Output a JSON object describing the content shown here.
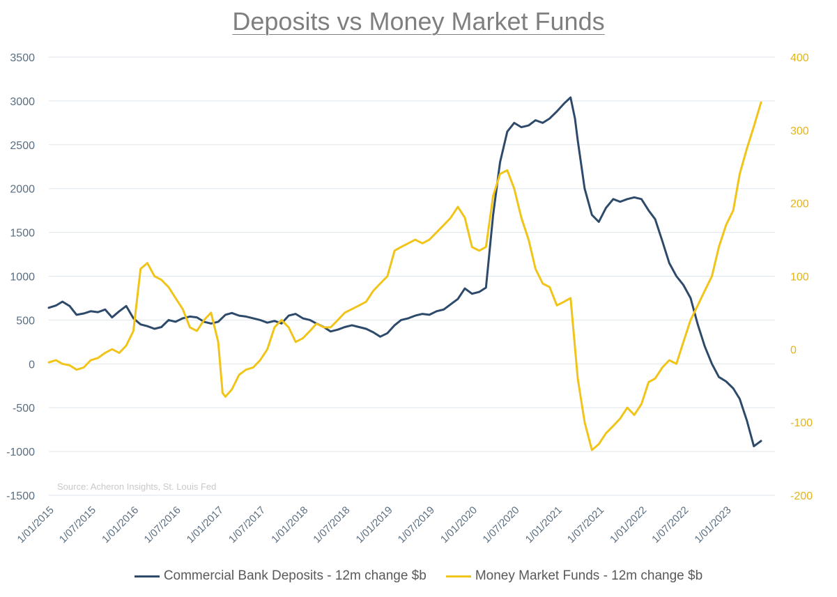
{
  "chart_data": {
    "type": "line",
    "title": "Deposits vs Money Market Funds",
    "source_note": "Source: Acheron Insights, St. Louis Fed",
    "colors": {
      "deposits": "#2e4a6b",
      "mmf": "#f0c419",
      "grid": "#dde6ec",
      "left_axis_text": "#5a6e80",
      "right_axis_text": "#e3b419"
    },
    "y_left": {
      "range": [
        -1500,
        3500
      ],
      "ticks": [
        "3500",
        "3000",
        "2500",
        "2000",
        "1500",
        "1000",
        "500",
        "0",
        "-500",
        "-1000",
        "-1500"
      ]
    },
    "y_right": {
      "range": [
        -200,
        400
      ],
      "ticks": [
        "400",
        "300",
        "200",
        "100",
        "0",
        "-100",
        "-200"
      ]
    },
    "x_range": [
      "2015-01-01",
      "2023-07-31"
    ],
    "x_ticks": [
      {
        "label": "1/01/2015",
        "date": "2015-01-01"
      },
      {
        "label": "1/07/2015",
        "date": "2015-07-01"
      },
      {
        "label": "1/01/2016",
        "date": "2016-01-01"
      },
      {
        "label": "1/07/2016",
        "date": "2016-07-01"
      },
      {
        "label": "1/01/2017",
        "date": "2017-01-01"
      },
      {
        "label": "1/07/2017",
        "date": "2017-07-01"
      },
      {
        "label": "1/01/2018",
        "date": "2018-01-01"
      },
      {
        "label": "1/07/2018",
        "date": "2018-07-01"
      },
      {
        "label": "1/01/2019",
        "date": "2019-01-01"
      },
      {
        "label": "1/07/2019",
        "date": "2019-07-01"
      },
      {
        "label": "1/01/2020",
        "date": "2020-01-01"
      },
      {
        "label": "1/07/2020",
        "date": "2020-07-01"
      },
      {
        "label": "1/01/2021",
        "date": "2021-01-01"
      },
      {
        "label": "1/07/2021",
        "date": "2021-07-01"
      },
      {
        "label": "1/01/2022",
        "date": "2022-01-01"
      },
      {
        "label": "1/07/2022",
        "date": "2022-07-01"
      },
      {
        "label": "1/01/2023",
        "date": "2023-01-01"
      }
    ],
    "series": [
      {
        "name": "Commercial Bank Deposits - 12m change $b",
        "axis": "left",
        "color": "#2e4a6b",
        "points": [
          [
            "2015-01-01",
            640
          ],
          [
            "2015-02-01",
            665
          ],
          [
            "2015-03-01",
            710
          ],
          [
            "2015-04-01",
            660
          ],
          [
            "2015-05-01",
            560
          ],
          [
            "2015-06-01",
            575
          ],
          [
            "2015-07-01",
            600
          ],
          [
            "2015-08-01",
            590
          ],
          [
            "2015-09-01",
            620
          ],
          [
            "2015-10-01",
            530
          ],
          [
            "2015-11-01",
            600
          ],
          [
            "2015-12-01",
            660
          ],
          [
            "2016-01-01",
            520
          ],
          [
            "2016-02-01",
            450
          ],
          [
            "2016-03-01",
            430
          ],
          [
            "2016-04-01",
            400
          ],
          [
            "2016-05-01",
            420
          ],
          [
            "2016-06-01",
            500
          ],
          [
            "2016-07-01",
            480
          ],
          [
            "2016-08-01",
            520
          ],
          [
            "2016-09-01",
            540
          ],
          [
            "2016-10-01",
            530
          ],
          [
            "2016-11-01",
            480
          ],
          [
            "2016-12-01",
            460
          ],
          [
            "2017-01-01",
            480
          ],
          [
            "2017-02-01",
            560
          ],
          [
            "2017-03-01",
            580
          ],
          [
            "2017-04-01",
            550
          ],
          [
            "2017-05-01",
            540
          ],
          [
            "2017-06-01",
            520
          ],
          [
            "2017-07-01",
            500
          ],
          [
            "2017-08-01",
            470
          ],
          [
            "2017-09-01",
            490
          ],
          [
            "2017-10-01",
            460
          ],
          [
            "2017-11-01",
            550
          ],
          [
            "2017-12-01",
            570
          ],
          [
            "2018-01-01",
            520
          ],
          [
            "2018-02-01",
            500
          ],
          [
            "2018-03-01",
            460
          ],
          [
            "2018-04-01",
            420
          ],
          [
            "2018-05-01",
            370
          ],
          [
            "2018-06-01",
            390
          ],
          [
            "2018-07-01",
            420
          ],
          [
            "2018-08-01",
            440
          ],
          [
            "2018-09-01",
            420
          ],
          [
            "2018-10-01",
            400
          ],
          [
            "2018-11-01",
            360
          ],
          [
            "2018-12-01",
            310
          ],
          [
            "2019-01-01",
            350
          ],
          [
            "2019-02-01",
            440
          ],
          [
            "2019-03-01",
            500
          ],
          [
            "2019-04-01",
            520
          ],
          [
            "2019-05-01",
            550
          ],
          [
            "2019-06-01",
            570
          ],
          [
            "2019-07-01",
            560
          ],
          [
            "2019-08-01",
            600
          ],
          [
            "2019-09-01",
            620
          ],
          [
            "2019-10-01",
            680
          ],
          [
            "2019-11-01",
            740
          ],
          [
            "2019-12-01",
            860
          ],
          [
            "2020-01-01",
            800
          ],
          [
            "2020-02-01",
            820
          ],
          [
            "2020-03-01",
            870
          ],
          [
            "2020-04-01",
            1700
          ],
          [
            "2020-05-01",
            2300
          ],
          [
            "2020-06-01",
            2650
          ],
          [
            "2020-07-01",
            2750
          ],
          [
            "2020-08-01",
            2700
          ],
          [
            "2020-09-01",
            2720
          ],
          [
            "2020-10-01",
            2780
          ],
          [
            "2020-11-01",
            2750
          ],
          [
            "2020-12-01",
            2800
          ],
          [
            "2021-01-01",
            2880
          ],
          [
            "2021-02-01",
            2970
          ],
          [
            "2021-03-01",
            3040
          ],
          [
            "2021-03-20",
            2800
          ],
          [
            "2021-04-01",
            2550
          ],
          [
            "2021-05-01",
            2000
          ],
          [
            "2021-06-01",
            1700
          ],
          [
            "2021-07-01",
            1620
          ],
          [
            "2021-08-01",
            1780
          ],
          [
            "2021-09-01",
            1880
          ],
          [
            "2021-10-01",
            1850
          ],
          [
            "2021-11-01",
            1880
          ],
          [
            "2021-12-01",
            1900
          ],
          [
            "2022-01-01",
            1880
          ],
          [
            "2022-02-01",
            1750
          ],
          [
            "2022-03-01",
            1650
          ],
          [
            "2022-04-01",
            1400
          ],
          [
            "2022-05-01",
            1150
          ],
          [
            "2022-06-01",
            1000
          ],
          [
            "2022-07-01",
            900
          ],
          [
            "2022-08-01",
            750
          ],
          [
            "2022-09-01",
            450
          ],
          [
            "2022-10-01",
            200
          ],
          [
            "2022-11-01",
            0
          ],
          [
            "2022-12-01",
            -150
          ],
          [
            "2023-01-01",
            -200
          ],
          [
            "2023-02-01",
            -280
          ],
          [
            "2023-03-01",
            -400
          ],
          [
            "2023-04-01",
            -650
          ],
          [
            "2023-05-01",
            -940
          ],
          [
            "2023-06-01",
            -880
          ]
        ]
      },
      {
        "name": "Money Market Funds  - 12m change $b",
        "axis": "right",
        "color": "#f0c419",
        "points": [
          [
            "2015-01-01",
            -18
          ],
          [
            "2015-02-01",
            -15
          ],
          [
            "2015-03-01",
            -20
          ],
          [
            "2015-04-01",
            -22
          ],
          [
            "2015-05-01",
            -28
          ],
          [
            "2015-06-01",
            -25
          ],
          [
            "2015-07-01",
            -15
          ],
          [
            "2015-08-01",
            -12
          ],
          [
            "2015-09-01",
            -5
          ],
          [
            "2015-10-01",
            0
          ],
          [
            "2015-11-01",
            -5
          ],
          [
            "2015-12-01",
            5
          ],
          [
            "2016-01-01",
            25
          ],
          [
            "2016-02-01",
            110
          ],
          [
            "2016-03-01",
            118
          ],
          [
            "2016-04-01",
            100
          ],
          [
            "2016-05-01",
            95
          ],
          [
            "2016-06-01",
            85
          ],
          [
            "2016-07-01",
            70
          ],
          [
            "2016-08-01",
            55
          ],
          [
            "2016-09-01",
            30
          ],
          [
            "2016-10-01",
            25
          ],
          [
            "2016-11-01",
            40
          ],
          [
            "2016-12-01",
            50
          ],
          [
            "2017-01-01",
            10
          ],
          [
            "2017-01-20",
            -60
          ],
          [
            "2017-02-01",
            -65
          ],
          [
            "2017-03-01",
            -55
          ],
          [
            "2017-04-01",
            -35
          ],
          [
            "2017-05-01",
            -28
          ],
          [
            "2017-06-01",
            -25
          ],
          [
            "2017-07-01",
            -15
          ],
          [
            "2017-08-01",
            0
          ],
          [
            "2017-09-01",
            30
          ],
          [
            "2017-10-01",
            40
          ],
          [
            "2017-11-01",
            30
          ],
          [
            "2017-12-01",
            10
          ],
          [
            "2018-01-01",
            15
          ],
          [
            "2018-02-01",
            25
          ],
          [
            "2018-03-01",
            35
          ],
          [
            "2018-04-01",
            30
          ],
          [
            "2018-05-01",
            30
          ],
          [
            "2018-06-01",
            40
          ],
          [
            "2018-07-01",
            50
          ],
          [
            "2018-08-01",
            55
          ],
          [
            "2018-09-01",
            60
          ],
          [
            "2018-10-01",
            65
          ],
          [
            "2018-11-01",
            80
          ],
          [
            "2018-12-01",
            90
          ],
          [
            "2019-01-01",
            100
          ],
          [
            "2019-02-01",
            135
          ],
          [
            "2019-03-01",
            140
          ],
          [
            "2019-04-01",
            145
          ],
          [
            "2019-05-01",
            150
          ],
          [
            "2019-06-01",
            145
          ],
          [
            "2019-07-01",
            150
          ],
          [
            "2019-08-01",
            160
          ],
          [
            "2019-09-01",
            170
          ],
          [
            "2019-10-01",
            180
          ],
          [
            "2019-11-01",
            195
          ],
          [
            "2019-12-01",
            180
          ],
          [
            "2020-01-01",
            140
          ],
          [
            "2020-02-01",
            135
          ],
          [
            "2020-03-01",
            140
          ],
          [
            "2020-04-01",
            210
          ],
          [
            "2020-05-01",
            240
          ],
          [
            "2020-06-01",
            245
          ],
          [
            "2020-07-01",
            220
          ],
          [
            "2020-08-01",
            180
          ],
          [
            "2020-09-01",
            150
          ],
          [
            "2020-10-01",
            110
          ],
          [
            "2020-11-01",
            90
          ],
          [
            "2020-12-01",
            85
          ],
          [
            "2021-01-01",
            60
          ],
          [
            "2021-02-01",
            65
          ],
          [
            "2021-03-01",
            70
          ],
          [
            "2021-04-01",
            -40
          ],
          [
            "2021-05-01",
            -100
          ],
          [
            "2021-06-01",
            -138
          ],
          [
            "2021-07-01",
            -130
          ],
          [
            "2021-08-01",
            -115
          ],
          [
            "2021-09-01",
            -105
          ],
          [
            "2021-10-01",
            -95
          ],
          [
            "2021-11-01",
            -80
          ],
          [
            "2021-12-01",
            -90
          ],
          [
            "2022-01-01",
            -75
          ],
          [
            "2022-02-01",
            -45
          ],
          [
            "2022-03-01",
            -40
          ],
          [
            "2022-04-01",
            -25
          ],
          [
            "2022-05-01",
            -15
          ],
          [
            "2022-06-01",
            -20
          ],
          [
            "2022-07-01",
            10
          ],
          [
            "2022-08-01",
            40
          ],
          [
            "2022-09-01",
            60
          ],
          [
            "2022-10-01",
            80
          ],
          [
            "2022-11-01",
            100
          ],
          [
            "2022-12-01",
            140
          ],
          [
            "2023-01-01",
            170
          ],
          [
            "2023-02-01",
            190
          ],
          [
            "2023-03-01",
            240
          ],
          [
            "2023-04-01",
            275
          ],
          [
            "2023-05-01",
            305
          ],
          [
            "2023-06-01",
            338
          ]
        ]
      }
    ],
    "grid": true,
    "legend_position": "bottom"
  }
}
